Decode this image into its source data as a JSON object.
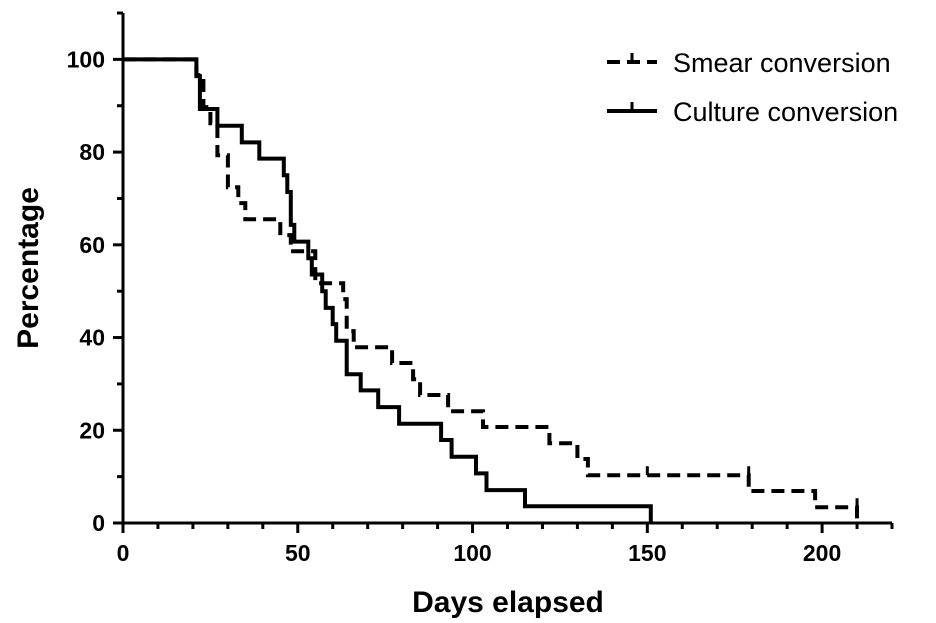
{
  "chart_data": {
    "type": "line",
    "step": true,
    "title": "",
    "xlabel": "Days elapsed",
    "ylabel": "Percentage",
    "xlim": [
      0,
      220
    ],
    "ylim": [
      0,
      110
    ],
    "x_ticks": [
      0,
      50,
      100,
      150,
      200
    ],
    "y_ticks": [
      0,
      20,
      40,
      60,
      80,
      100
    ],
    "grid": false,
    "legend_position": "top-right",
    "series": [
      {
        "name": "Smear conversion",
        "line_style": "dashed",
        "color": "#000000",
        "points": [
          [
            0,
            100
          ],
          [
            21,
            100
          ],
          [
            21,
            96.6
          ],
          [
            23,
            96.6
          ],
          [
            23,
            89.7
          ],
          [
            25,
            89.7
          ],
          [
            25,
            86.2
          ],
          [
            27,
            86.2
          ],
          [
            27,
            79.3
          ],
          [
            30,
            79.3
          ],
          [
            30,
            72.4
          ],
          [
            33,
            72.4
          ],
          [
            33,
            69
          ],
          [
            35,
            69
          ],
          [
            35,
            65.5
          ],
          [
            45,
            65.5
          ],
          [
            45,
            62.1
          ],
          [
            48,
            62.1
          ],
          [
            48,
            58.6
          ],
          [
            55,
            58.6
          ],
          [
            55,
            51.7
          ],
          [
            63,
            51.7
          ],
          [
            63,
            48.3
          ],
          [
            64,
            48.3
          ],
          [
            64,
            41.4
          ],
          [
            66,
            41.4
          ],
          [
            66,
            37.9
          ],
          [
            77,
            37.9
          ],
          [
            77,
            34.5
          ],
          [
            83,
            34.5
          ],
          [
            83,
            31
          ],
          [
            85,
            31
          ],
          [
            85,
            27.6
          ],
          [
            93,
            27.6
          ],
          [
            93,
            24.1
          ],
          [
            103,
            24.1
          ],
          [
            103,
            20.7
          ],
          [
            122,
            20.7
          ],
          [
            122,
            17.2
          ],
          [
            130,
            17.2
          ],
          [
            130,
            13.8
          ],
          [
            133,
            13.8
          ],
          [
            133,
            10.3
          ],
          [
            179,
            10.3
          ],
          [
            179,
            6.9
          ],
          [
            198,
            6.9
          ],
          [
            198,
            3.4
          ],
          [
            210,
            3.4
          ],
          [
            210,
            0
          ]
        ],
        "censored": [
          [
            150,
            10.3
          ],
          [
            179,
            10.3
          ],
          [
            210,
            3.4
          ]
        ]
      },
      {
        "name": "Culture conversion",
        "line_style": "solid",
        "color": "#000000",
        "points": [
          [
            0,
            100
          ],
          [
            21,
            100
          ],
          [
            21,
            96.4
          ],
          [
            22,
            96.4
          ],
          [
            22,
            89.3
          ],
          [
            27,
            89.3
          ],
          [
            27,
            85.7
          ],
          [
            34,
            85.7
          ],
          [
            34,
            82.1
          ],
          [
            39,
            82.1
          ],
          [
            39,
            78.6
          ],
          [
            46,
            78.6
          ],
          [
            46,
            75
          ],
          [
            47,
            75
          ],
          [
            47,
            71.4
          ],
          [
            48,
            71.4
          ],
          [
            48,
            64.3
          ],
          [
            49,
            64.3
          ],
          [
            49,
            60.7
          ],
          [
            53,
            60.7
          ],
          [
            53,
            57.1
          ],
          [
            54,
            57.1
          ],
          [
            54,
            53.6
          ],
          [
            57,
            53.6
          ],
          [
            57,
            50
          ],
          [
            58,
            50
          ],
          [
            58,
            46.4
          ],
          [
            60,
            46.4
          ],
          [
            60,
            42.9
          ],
          [
            61,
            42.9
          ],
          [
            61,
            39.3
          ],
          [
            64,
            39.3
          ],
          [
            64,
            32.1
          ],
          [
            68,
            32.1
          ],
          [
            68,
            28.6
          ],
          [
            73,
            28.6
          ],
          [
            73,
            25
          ],
          [
            79,
            25
          ],
          [
            79,
            21.4
          ],
          [
            91,
            21.4
          ],
          [
            91,
            17.9
          ],
          [
            94,
            17.9
          ],
          [
            94,
            14.3
          ],
          [
            101,
            14.3
          ],
          [
            101,
            10.7
          ],
          [
            104,
            10.7
          ],
          [
            104,
            7.1
          ],
          [
            115,
            7.1
          ],
          [
            115,
            3.6
          ],
          [
            151,
            3.6
          ],
          [
            151,
            0
          ]
        ],
        "censored": []
      }
    ]
  }
}
